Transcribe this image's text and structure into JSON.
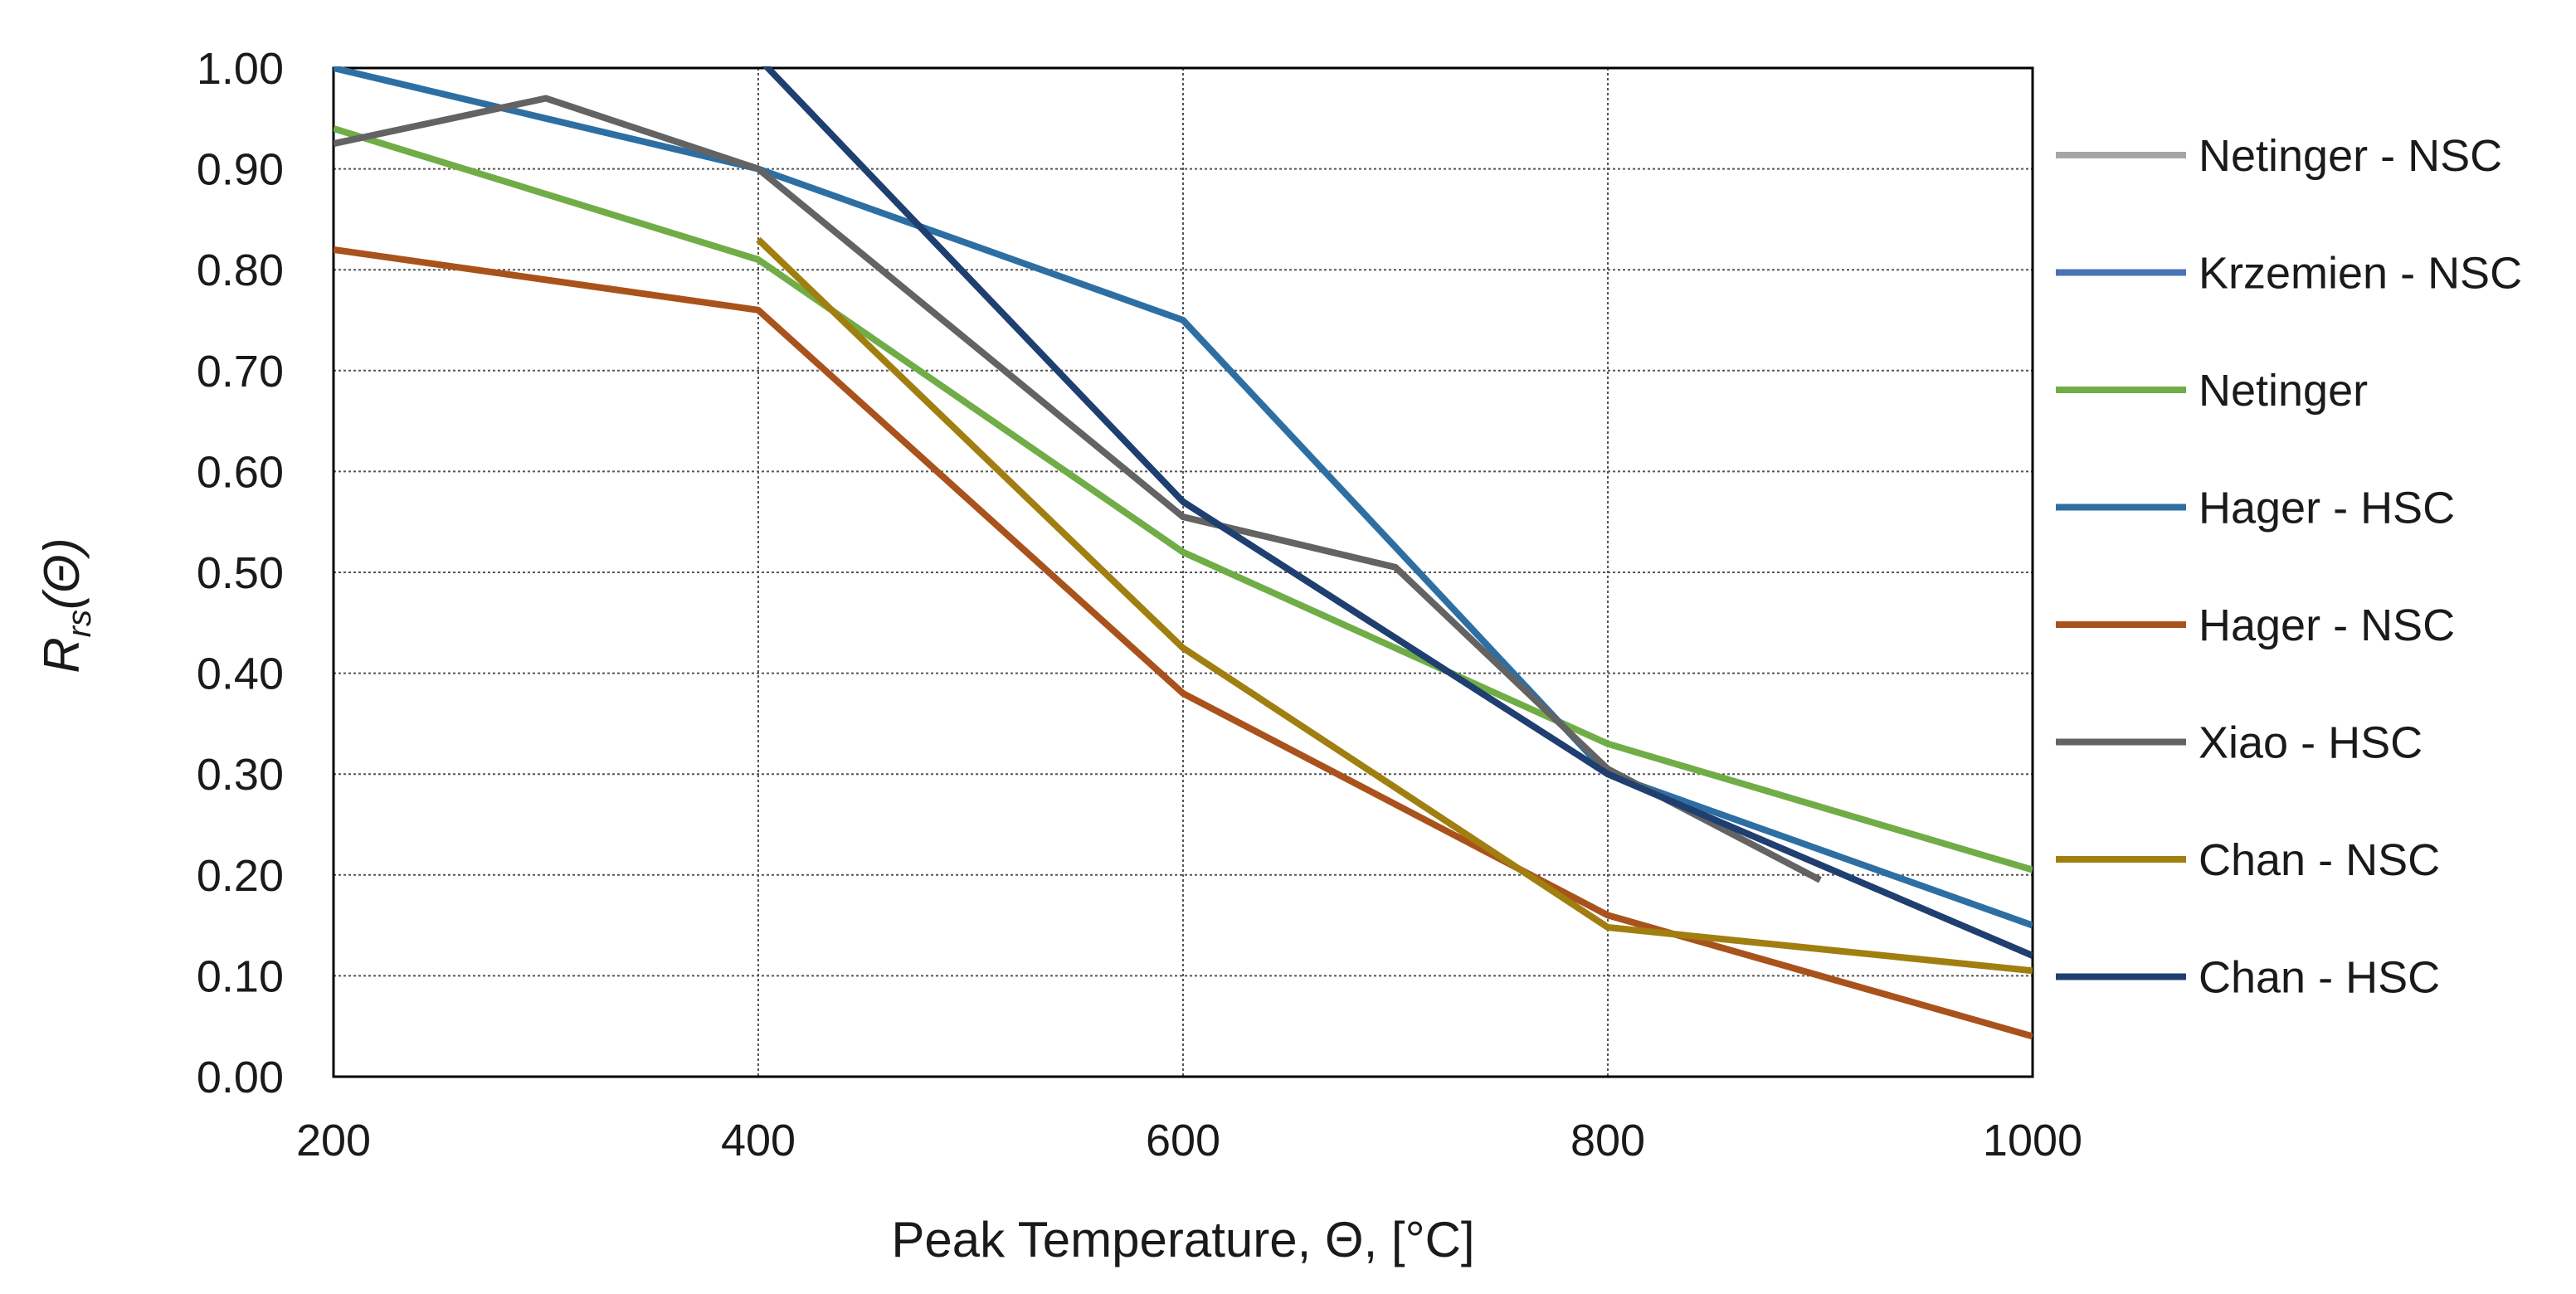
{
  "chart_data": {
    "type": "line",
    "title": "",
    "xlabel": "Peak Temperature, Θ, [°C]",
    "ylabel_main": "R",
    "ylabel_sub": "rs",
    "ylabel_arg": "(Θ)",
    "xlim": [
      200,
      1000
    ],
    "ylim": [
      0,
      1
    ],
    "grid": true,
    "legend_position": "right",
    "x_ticks": [
      "200",
      "400",
      "600",
      "800",
      "1000"
    ],
    "y_ticks": [
      "0.00",
      "0.10",
      "0.20",
      "0.30",
      "0.40",
      "0.50",
      "0.60",
      "0.70",
      "0.80",
      "0.90",
      "1.00"
    ],
    "series": [
      {
        "name": "Netinger - NSC",
        "color": "#a6a6a6",
        "x": [],
        "y": []
      },
      {
        "name": "Krzemien - NSC",
        "color": "#4a73b5",
        "x": [],
        "y": []
      },
      {
        "name": "Netinger",
        "color": "#70ad47",
        "x": [
          200,
          400,
          600,
          800,
          1000
        ],
        "y": [
          0.94,
          0.81,
          0.52,
          0.33,
          0.205
        ]
      },
      {
        "name": "Hager - HSC",
        "color": "#2e6fa3",
        "x": [
          200,
          400,
          600,
          800,
          1000
        ],
        "y": [
          1.0,
          0.9,
          0.75,
          0.3,
          0.15
        ]
      },
      {
        "name": "Hager - NSC",
        "color": "#a9521c",
        "x": [
          200,
          400,
          600,
          800,
          1000
        ],
        "y": [
          0.82,
          0.76,
          0.38,
          0.16,
          0.04
        ]
      },
      {
        "name": "Xiao - HSC",
        "color": "#636363",
        "x": [
          200,
          300,
          400,
          600,
          700,
          800,
          900
        ],
        "y": [
          0.925,
          0.97,
          0.9,
          0.555,
          0.505,
          0.305,
          0.195
        ]
      },
      {
        "name": "Chan - NSC",
        "color": "#a07f10",
        "x": [
          400,
          600,
          800,
          1000
        ],
        "y": [
          0.83,
          0.425,
          0.148,
          0.105
        ]
      },
      {
        "name": "Chan - HSC",
        "color": "#1f3f70",
        "x": [
          400,
          600,
          800,
          1000
        ],
        "y": [
          1.01,
          0.57,
          0.3,
          0.12
        ]
      }
    ]
  }
}
